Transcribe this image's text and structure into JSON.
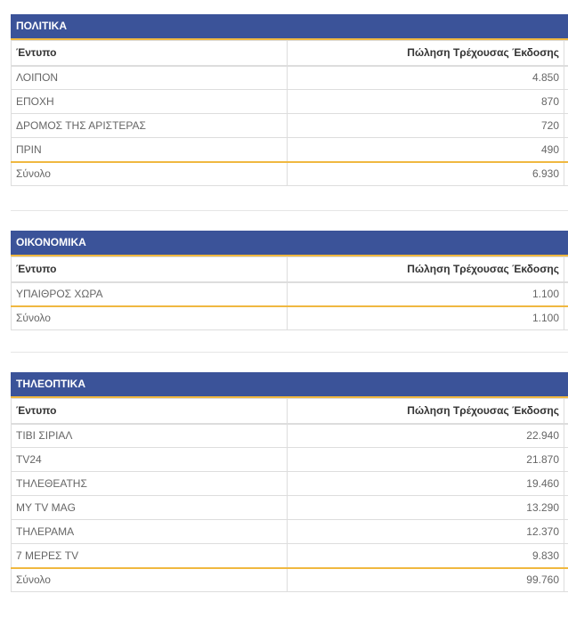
{
  "colors": {
    "header_bg": "#3b5399",
    "accent": "#f0b840"
  },
  "columns": {
    "name": "Έντυπο",
    "sales": "Πώληση Τρέχουσας Έκδοσης"
  },
  "total_label": "Σύνολο",
  "sections": [
    {
      "title": "ΠΟΛΙΤΙΚΑ",
      "rows": [
        [
          "ΛΟΙΠΟΝ",
          "4.850"
        ],
        [
          "ΕΠΟΧΗ",
          "870"
        ],
        [
          "ΔΡΟΜΟΣ ΤΗΣ ΑΡΙΣΤΕΡΑΣ",
          "720"
        ],
        [
          "ΠΡΙΝ",
          "490"
        ]
      ],
      "total": "6.930"
    },
    {
      "title": "ΟΙΚΟΝΟΜΙΚΑ",
      "rows": [
        [
          "ΥΠΑΙΘΡΟΣ ΧΩΡΑ",
          "1.100"
        ]
      ],
      "total": "1.100"
    },
    {
      "title": "ΤΗΛΕΟΠΤΙΚΑ",
      "rows": [
        [
          "ΤΙΒΙ ΣΙΡΙΑΛ",
          "22.940"
        ],
        [
          "TV24",
          "21.870"
        ],
        [
          "ΤΗΛΕΘΕΑΤΗΣ",
          "19.460"
        ],
        [
          "MY TV MAG",
          "13.290"
        ],
        [
          "ΤΗΛΕΡΑΜΑ",
          "12.370"
        ],
        [
          "7 ΜΕΡΕΣ TV",
          "9.830"
        ]
      ],
      "total": "99.760"
    }
  ]
}
